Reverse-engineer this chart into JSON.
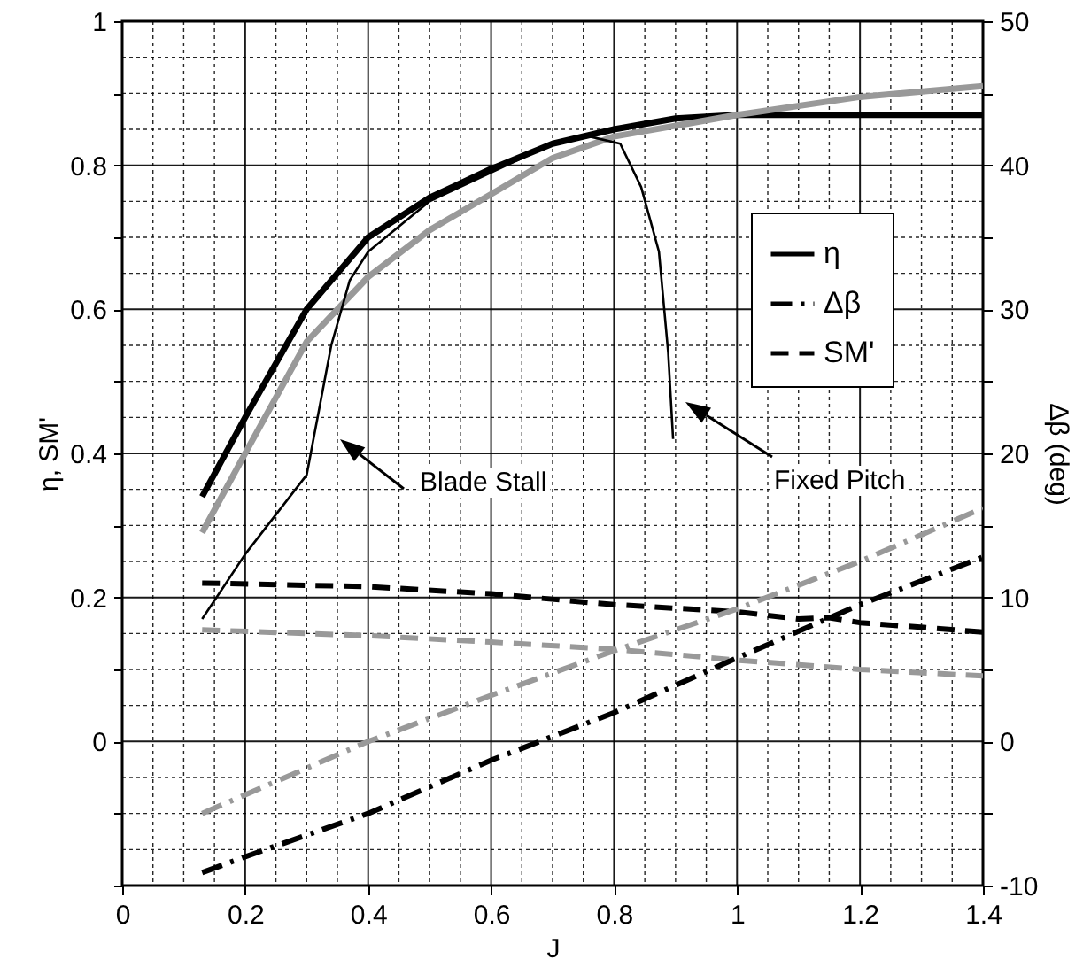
{
  "chart_data": {
    "type": "line",
    "xlabel": "J",
    "ylabel": "η, SM'",
    "y2label": "Δβ (deg)",
    "xlim": [
      0,
      1.4
    ],
    "xticks": [
      0,
      {
        "value": 0.05,
        "label": null
      },
      {
        "value": 0.1,
        "label": null
      },
      {
        "value": 0.15,
        "label": null
      },
      0.2,
      {
        "value": 0.25,
        "label": null
      },
      {
        "value": 0.3,
        "label": null
      },
      {
        "value": 0.35,
        "label": null
      },
      0.4,
      {
        "value": 0.45,
        "label": null
      },
      {
        "value": 0.5,
        "label": null
      },
      {
        "value": 0.55,
        "label": null
      },
      0.6,
      {
        "value": 0.65,
        "label": null
      },
      {
        "value": 0.7,
        "label": null
      },
      {
        "value": 0.75,
        "label": null
      },
      0.8,
      {
        "value": 0.85,
        "label": null
      },
      {
        "value": 0.9,
        "label": null
      },
      {
        "value": 0.95,
        "label": null
      },
      1,
      {
        "value": 1.05,
        "label": null
      },
      {
        "value": 1.1,
        "label": null
      },
      {
        "value": 1.15,
        "label": null
      },
      1.2,
      {
        "value": 1.25,
        "label": null
      },
      {
        "value": 1.3,
        "label": null
      },
      {
        "value": 1.35,
        "label": null
      },
      1.4
    ],
    "ylim": [
      -0.2,
      1
    ],
    "yticks": [
      {
        "value": -0.2,
        "label": null
      },
      {
        "value": -0.15,
        "label": null
      },
      {
        "value": -0.1,
        "label": null
      },
      {
        "value": -0.05,
        "label": null
      },
      0,
      {
        "value": 0.05,
        "label": null
      },
      {
        "value": 0.1,
        "label": null
      },
      {
        "value": 0.15,
        "label": null
      },
      0.2,
      {
        "value": 0.25,
        "label": null
      },
      {
        "value": 0.3,
        "label": null
      },
      {
        "value": 0.35,
        "label": null
      },
      0.4,
      {
        "value": 0.45,
        "label": null
      },
      {
        "value": 0.5,
        "label": null
      },
      {
        "value": 0.55,
        "label": null
      },
      0.6,
      {
        "value": 0.65,
        "label": null
      },
      {
        "value": 0.7,
        "label": null
      },
      {
        "value": 0.75,
        "label": null
      },
      0.8,
      {
        "value": 0.85,
        "label": null
      },
      {
        "value": 0.9,
        "label": null
      },
      {
        "value": 0.95,
        "label": null
      },
      1
    ],
    "y2lim": [
      -10,
      50
    ],
    "y2ticks": [
      -10,
      {
        "value": -7.5,
        "label": null
      },
      {
        "value": -5,
        "label": null
      },
      {
        "value": -2.5,
        "label": null
      },
      0,
      {
        "value": 2.5,
        "label": null
      },
      {
        "value": 5,
        "label": null
      },
      {
        "value": 7.5,
        "label": null
      },
      10,
      {
        "value": 12.5,
        "label": null
      },
      {
        "value": 15,
        "label": null
      },
      {
        "value": 17.5,
        "label": null
      },
      20,
      {
        "value": 22.5,
        "label": null
      },
      {
        "value": 25,
        "label": null
      },
      {
        "value": 27.5,
        "label": null
      },
      30,
      {
        "value": 32.5,
        "label": null
      },
      {
        "value": 35,
        "label": null
      },
      {
        "value": 37.5,
        "label": null
      },
      40,
      {
        "value": 42.5,
        "label": null
      },
      {
        "value": 45,
        "label": null
      },
      {
        "value": 47.5,
        "label": null
      },
      50
    ],
    "grid": true,
    "legend": "right",
    "series": [
      {
        "name": "η",
        "color": "#000000",
        "line_style": "solid",
        "x": [
          0.13,
          0.2,
          0.3,
          0.4,
          0.5,
          0.6,
          0.7,
          0.8,
          0.9,
          1.0,
          1.2,
          1.4
        ],
        "values": [
          0.34,
          0.45,
          0.6,
          0.7,
          0.755,
          0.795,
          0.83,
          0.85,
          0.865,
          0.87,
          0.87,
          0.87
        ]
      },
      {
        "name": "Δβ",
        "color": "#000000",
        "line_style": "dashdot",
        "axis": "y2",
        "x": [
          0.13,
          0.2,
          0.4,
          0.6,
          0.8,
          1.0,
          1.2,
          1.4
        ],
        "values": [
          -9.1,
          -8,
          -5,
          -1.3,
          2,
          5.8,
          9.5,
          12.8
        ]
      },
      {
        "name": "SM'",
        "color": "#000000",
        "line_style": "dashed",
        "x": [
          0.13,
          0.4,
          0.6,
          0.8,
          1.0,
          1.1,
          1.15,
          1.2,
          1.4
        ],
        "values": [
          0.22,
          0.215,
          0.205,
          0.19,
          0.18,
          0.17,
          0.172,
          0.165,
          0.152
        ]
      },
      {
        "color": "#999999",
        "line_style": "solid",
        "x": [
          0.13,
          0.2,
          0.3,
          0.4,
          0.5,
          0.6,
          0.7,
          0.8,
          1.0,
          1.2,
          1.4
        ],
        "values": [
          0.29,
          0.4,
          0.555,
          0.645,
          0.71,
          0.76,
          0.81,
          0.84,
          0.87,
          0.895,
          0.91
        ]
      },
      {
        "color": "#999999",
        "line_style": "dashdot",
        "axis": "y2",
        "x": [
          0.13,
          0.4,
          0.6,
          0.8,
          1.0,
          1.2,
          1.4
        ],
        "values": [
          -5,
          0,
          3.2,
          6.3,
          9.2,
          12.5,
          16.2
        ]
      },
      {
        "color": "#999999",
        "line_style": "dashed",
        "x": [
          0.13,
          0.4,
          0.6,
          0.8,
          1.0,
          1.2,
          1.4
        ],
        "values": [
          0.155,
          0.147,
          0.138,
          0.128,
          0.113,
          0.1,
          0.091
        ]
      },
      {
        "color": "#000000",
        "line_style": "solid",
        "x": [
          0.13,
          0.2,
          0.3,
          0.32,
          0.34,
          0.37,
          0.4,
          0.5,
          0.6,
          0.7,
          0.76,
          0.81,
          0.844,
          0.873,
          0.888,
          0.896
        ],
        "values": [
          0.17,
          0.26,
          0.37,
          0.46,
          0.55,
          0.64,
          0.68,
          0.75,
          0.79,
          0.83,
          0.84,
          0.83,
          0.77,
          0.68,
          0.54,
          0.42
        ]
      }
    ],
    "annotations": [
      "Blade Stall",
      "Fixed Pitch"
    ]
  }
}
